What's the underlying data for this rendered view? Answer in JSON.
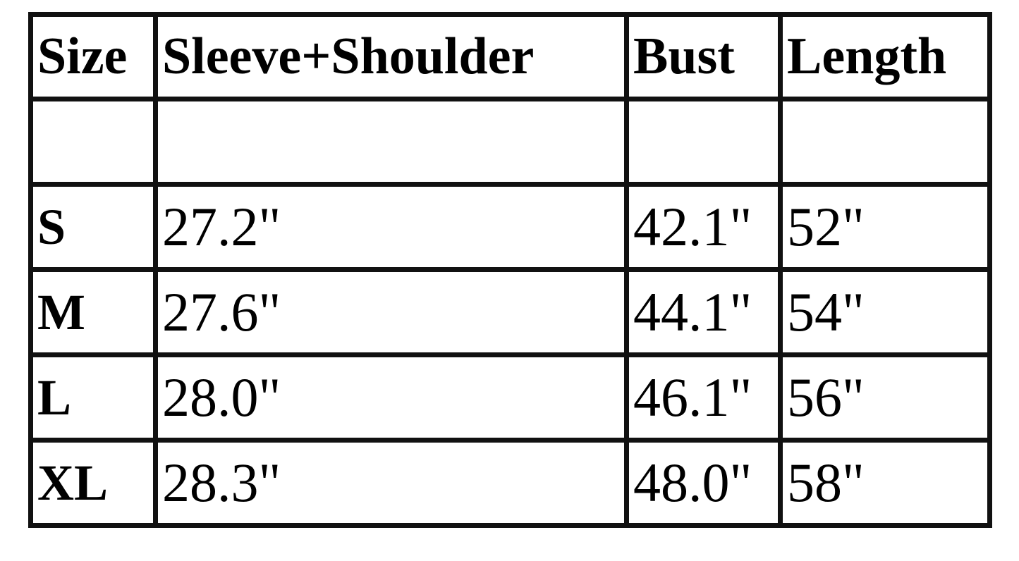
{
  "table": {
    "headers": [
      "Size",
      "Sleeve+Shoulder",
      "Bust",
      "Length"
    ],
    "rows": [
      [
        "",
        "",
        "",
        ""
      ],
      [
        "S",
        "27.2\"",
        "42.1\"",
        "52\""
      ],
      [
        "M",
        "27.6\"",
        "44.1\"",
        "54\""
      ],
      [
        "L",
        "28.0\"",
        "46.1\"",
        "56\""
      ],
      [
        "XL",
        "28.3\"",
        "48.0\"",
        "58\""
      ]
    ]
  }
}
